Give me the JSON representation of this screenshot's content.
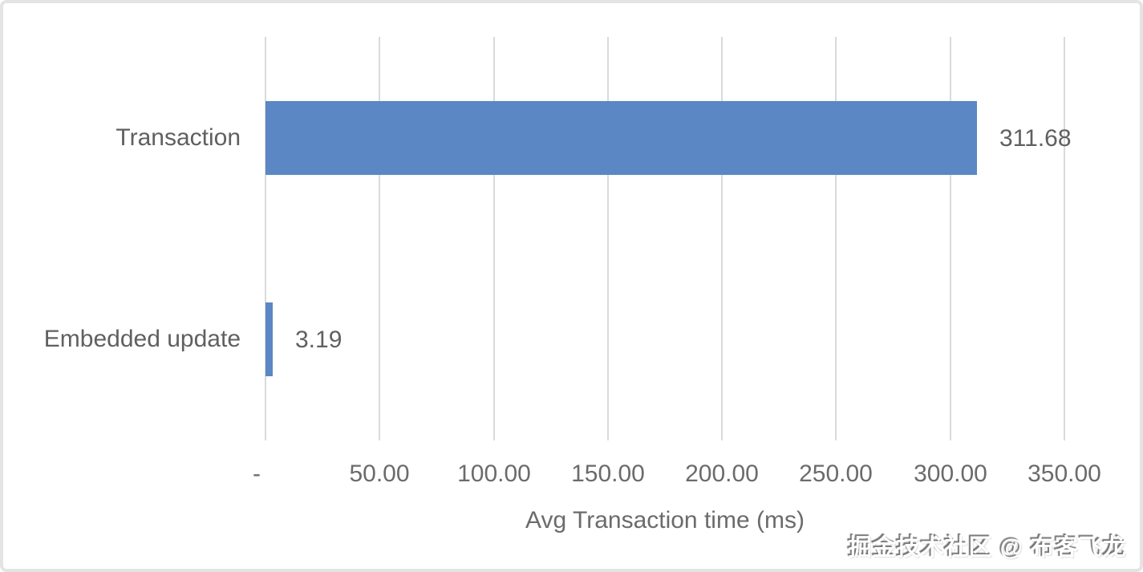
{
  "chart_data": {
    "type": "bar",
    "orientation": "horizontal",
    "title": "",
    "categories": [
      "Transaction",
      "Embedded update"
    ],
    "values": [
      311.68,
      3.19
    ],
    "data_labels": [
      "311.68",
      "3.19"
    ],
    "xlabel": "Avg Transaction time (ms)",
    "ylabel": "",
    "xlim": [
      0,
      350
    ],
    "x_ticks": [
      {
        "value": 0,
        "label": "-"
      },
      {
        "value": 50,
        "label": "50.00"
      },
      {
        "value": 100,
        "label": "100.00"
      },
      {
        "value": 150,
        "label": "150.00"
      },
      {
        "value": 200,
        "label": "200.00"
      },
      {
        "value": 250,
        "label": "250.00"
      },
      {
        "value": 300,
        "label": "300.00"
      },
      {
        "value": 350,
        "label": "350.00"
      }
    ],
    "grid": "vertical-gridlines-on",
    "legend": "none",
    "bar_color": "#5b87c4",
    "gridline_color": "#dadada",
    "text_color": "#606060"
  },
  "watermark": {
    "text": "掘金技术社区 @ 布客飞龙"
  }
}
